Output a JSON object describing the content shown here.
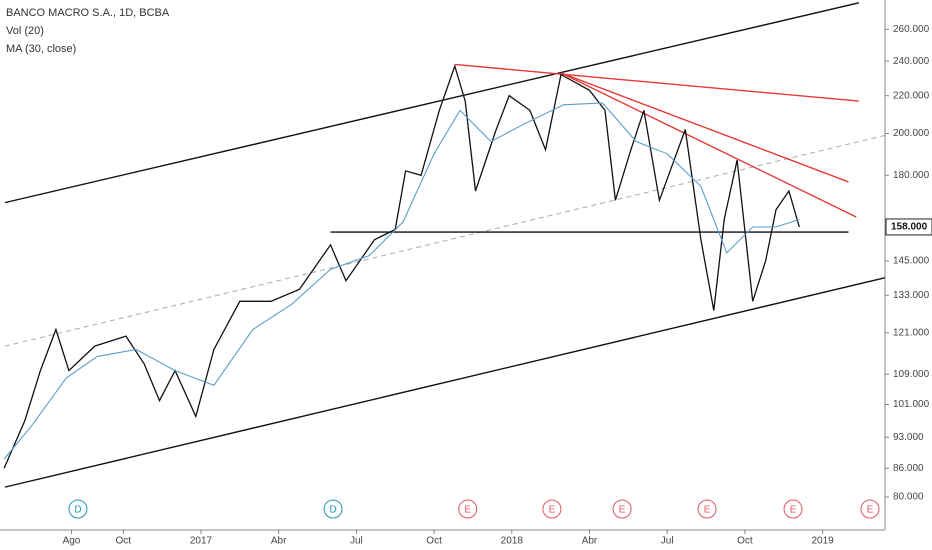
{
  "chart_data": {
    "type": "line",
    "title": "BANCO MACRO S.A., 1D, BCBA",
    "indicators": [
      "Vol (20)",
      "MA (30, close)"
    ],
    "log_scale": true,
    "xlim": [
      5.24,
      39.41
    ],
    "ylim": [
      73.6,
      280
    ],
    "xticks": [
      {
        "value": 8,
        "label": "Ago"
      },
      {
        "value": 10,
        "label": "Oct"
      },
      {
        "value": 13,
        "label": "2017"
      },
      {
        "value": 16,
        "label": "Abr"
      },
      {
        "value": 19,
        "label": "Jul"
      },
      {
        "value": 22,
        "label": "Oct"
      },
      {
        "value": 25,
        "label": "2018"
      },
      {
        "value": 28,
        "label": "Abr"
      },
      {
        "value": 31,
        "label": "Jul"
      },
      {
        "value": 34,
        "label": "Oct"
      },
      {
        "value": 37,
        "label": "2019"
      }
    ],
    "yticks": [
      {
        "value": 80,
        "label": "80.000"
      },
      {
        "value": 86,
        "label": "86.000"
      },
      {
        "value": 93,
        "label": "93.000"
      },
      {
        "value": 101,
        "label": "101.000"
      },
      {
        "value": 109,
        "label": "109.000"
      },
      {
        "value": 121,
        "label": "121.000"
      },
      {
        "value": 133,
        "label": "133.000"
      },
      {
        "value": 145,
        "label": "145.000"
      },
      {
        "value": 180,
        "label": "180.000"
      },
      {
        "value": 200,
        "label": "200.000"
      },
      {
        "value": 220,
        "label": "220.000"
      },
      {
        "value": 240,
        "label": "240.000"
      },
      {
        "value": 260,
        "label": "260.000"
      }
    ],
    "last_price": {
      "value": 158,
      "label": "158.000"
    },
    "series": [
      {
        "name": "Price",
        "color": "#111111",
        "x": [
          5.4,
          6.2,
          6.8,
          7.4,
          7.9,
          8.9,
          10.1,
          10.8,
          11.4,
          12.0,
          12.8,
          13.5,
          14.5,
          15.7,
          16.8,
          18.0,
          18.6,
          19.7,
          20.5,
          20.9,
          21.5,
          22.2,
          22.8,
          23.2,
          23.6,
          24.4,
          24.9,
          25.7,
          26.3,
          26.9,
          28.0,
          28.6,
          29.0,
          29.6,
          30.1,
          30.7,
          31.7,
          32.3,
          32.8,
          33.2,
          33.7,
          34.3,
          34.8,
          35.2,
          35.7,
          36.1
        ],
        "values": [
          86,
          97,
          110,
          122,
          110,
          117,
          120,
          112,
          102,
          110,
          98,
          116,
          131,
          131,
          135,
          151,
          138,
          153,
          157,
          182,
          180,
          212,
          237,
          217,
          173,
          202,
          220,
          212,
          192,
          232,
          223,
          212,
          169,
          192,
          212,
          169,
          202,
          153,
          128,
          161,
          187,
          131,
          145,
          165,
          173,
          158
        ]
      },
      {
        "name": "MA",
        "color": "#5b9ec9",
        "x": [
          5.4,
          6.5,
          7.8,
          9.0,
          10.5,
          12.0,
          13.5,
          15.0,
          16.5,
          18.0,
          19.5,
          20.8,
          22.0,
          23.0,
          24.2,
          25.5,
          27.0,
          28.5,
          29.8,
          31.0,
          32.3,
          33.3,
          34.3,
          35.2,
          36.1
        ],
        "values": [
          88,
          96,
          108,
          114,
          116,
          110,
          106,
          122,
          130,
          142,
          147,
          160,
          190,
          212,
          196,
          205,
          215,
          216,
          196,
          190,
          175,
          148,
          158,
          158,
          161
        ]
      }
    ],
    "lines": [
      {
        "x": [
          5.43,
          38.4
        ],
        "y": [
          168,
          278
        ],
        "color": "#111111",
        "dash": false
      },
      {
        "x": [
          5.43,
          39.4
        ],
        "y": [
          82,
          139
        ],
        "color": "#111111",
        "dash": false
      },
      {
        "x": [
          5.43,
          39.4
        ],
        "y": [
          117,
          199
        ],
        "color": "#aaaaaa",
        "dash": true
      },
      {
        "x": [
          18.0,
          38.0
        ],
        "y": [
          156,
          156
        ],
        "color": "#111111",
        "dash": false
      },
      {
        "x": [
          22.8,
          38.4
        ],
        "y": [
          238,
          217
        ],
        "color": "#e53935",
        "dash": false
      },
      {
        "x": [
          26.9,
          38.0
        ],
        "y": [
          233,
          177
        ],
        "color": "#e53935",
        "dash": false
      },
      {
        "x": [
          26.9,
          38.3
        ],
        "y": [
          233,
          162
        ],
        "color": "#e53935",
        "dash": false
      }
    ],
    "events": [
      {
        "x": 8.25,
        "label": "D",
        "color": "#2196b3"
      },
      {
        "x": 18.1,
        "label": "D",
        "color": "#2196b3"
      },
      {
        "x": 23.3,
        "label": "E",
        "color": "#e0556a"
      },
      {
        "x": 26.55,
        "label": "E",
        "color": "#e0556a"
      },
      {
        "x": 29.26,
        "label": "E",
        "color": "#e0556a"
      },
      {
        "x": 32.54,
        "label": "E",
        "color": "#e0556a"
      },
      {
        "x": 35.86,
        "label": "E",
        "color": "#e0556a"
      },
      {
        "x": 38.83,
        "label": "E",
        "color": "#e0556a"
      }
    ]
  }
}
